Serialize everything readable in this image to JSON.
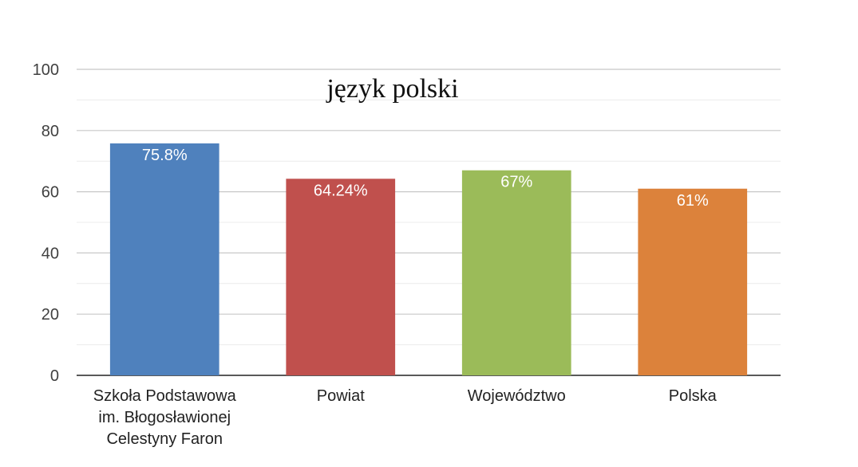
{
  "chart_data": {
    "type": "bar",
    "title": "język polski",
    "xlabel": "",
    "ylabel": "",
    "ylim": [
      0,
      100
    ],
    "yticks": [
      0,
      20,
      40,
      60,
      80,
      100
    ],
    "minor_grid_step": 10,
    "grid": true,
    "categories": [
      [
        "Szkoła Podstawowa",
        "im. Błogosławionej",
        "Celestyny Faron"
      ],
      [
        "Powiat"
      ],
      [
        "Województwo"
      ],
      [
        "Polska"
      ]
    ],
    "values": [
      75.8,
      64.24,
      67,
      61
    ],
    "data_labels": [
      "75.8%",
      "64.24%",
      "67%",
      "61%"
    ],
    "colors": [
      "#4f81bd",
      "#c0504d",
      "#9bbb59",
      "#dc823b"
    ],
    "legend": "none"
  }
}
